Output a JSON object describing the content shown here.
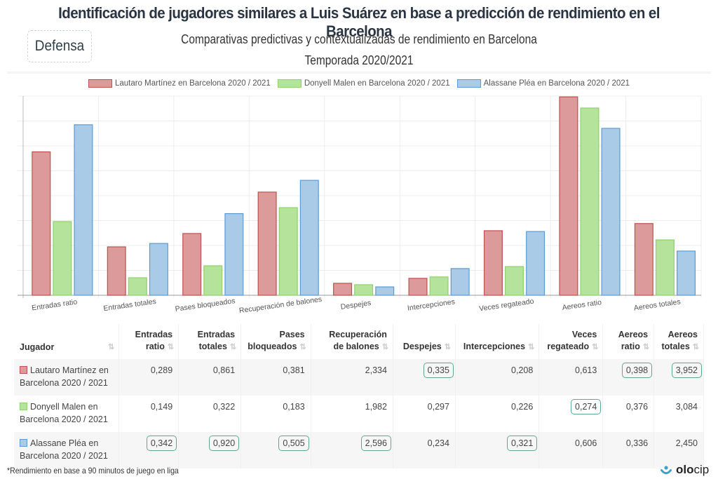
{
  "header": {
    "title": "Identificación de jugadores similares a Luis Suárez en base a predicción de rendimiento en el Barcelona",
    "badge": "Defensa",
    "subtitle": "Comparativas predictivas y contextualizadas de rendimiento en Barcelona",
    "season": "Temporada 2020/2021"
  },
  "colors": {
    "series_fill": [
      "#dc9a9a",
      "#b5e39b",
      "#a9cbe8"
    ],
    "series_stroke": [
      "#c0504d",
      "#8fd16a",
      "#5b9bd5"
    ],
    "highlight": "#5aaa8c"
  },
  "chart_data": {
    "type": "bar",
    "title": "",
    "xlabel": "",
    "ylabel": "",
    "grid": true,
    "legend_position": "top-center",
    "y_axis_labels": false,
    "scaling_note": "bar heights are relative (normalized per metric); fractions of plot height estimated from pixels",
    "categories": [
      "Entradas ratio",
      "Entradas totales",
      "Pases bloqueados",
      "Recuperación de balones",
      "Despejes",
      "Intercepciones",
      "Veces regateado",
      "Aereos ratio",
      "Aereos totales"
    ],
    "series": [
      {
        "name": "Lautaro Martínez en Barcelona 2020 / 2021",
        "values": [
          0.289,
          0.861,
          0.381,
          2.334,
          0.335,
          0.208,
          0.613,
          0.398,
          3.952
        ],
        "relative_height": [
          0.72,
          0.243,
          0.31,
          0.518,
          0.06,
          0.085,
          0.324,
          0.996,
          0.36
        ]
      },
      {
        "name": "Donyell Malen en Barcelona 2020 / 2021",
        "values": [
          0.149,
          0.322,
          0.183,
          1.982,
          0.297,
          0.226,
          0.274,
          0.376,
          3.084
        ],
        "relative_height": [
          0.37,
          0.088,
          0.148,
          0.44,
          0.053,
          0.092,
          0.144,
          0.94,
          0.278
        ]
      },
      {
        "name": "Alassane Pléa en Barcelona 2020 / 2021",
        "values": [
          0.342,
          0.92,
          0.505,
          2.596,
          0.234,
          0.321,
          0.606,
          0.336,
          2.45
        ],
        "relative_height": [
          0.856,
          0.26,
          0.41,
          0.577,
          0.042,
          0.134,
          0.32,
          0.838,
          0.222
        ]
      }
    ]
  },
  "table": {
    "columns": [
      {
        "line1": "",
        "line2": "Jugador"
      },
      {
        "line1": "Entradas",
        "line2": "ratio"
      },
      {
        "line1": "Entradas",
        "line2": "totales"
      },
      {
        "line1": "Pases",
        "line2": "bloqueados"
      },
      {
        "line1": "Recuperación",
        "line2": "de balones"
      },
      {
        "line1": "",
        "line2": "Despejes"
      },
      {
        "line1": "",
        "line2": "Intercepciones"
      },
      {
        "line1": "Veces",
        "line2": "regateado"
      },
      {
        "line1": "Aereos",
        "line2": "ratio"
      },
      {
        "line1": "Aereos",
        "line2": "totales"
      }
    ],
    "sort_icon": "⇅",
    "rows": [
      {
        "player_line1": "Lautaro Martínez en",
        "player_line2": "Barcelona 2020 / 2021",
        "cells": [
          "0,289",
          "0,861",
          "0,381",
          "2,334",
          "0,335",
          "0,208",
          "0,613",
          "0,398",
          "3,952"
        ],
        "highlighted": [
          false,
          false,
          false,
          false,
          true,
          false,
          false,
          true,
          true
        ]
      },
      {
        "player_line1": "Donyell Malen en",
        "player_line2": "Barcelona 2020 / 2021",
        "cells": [
          "0,149",
          "0,322",
          "0,183",
          "1,982",
          "0,297",
          "0,226",
          "0,274",
          "0,376",
          "3,084"
        ],
        "highlighted": [
          false,
          false,
          false,
          false,
          false,
          false,
          true,
          false,
          false
        ]
      },
      {
        "player_line1": "Alassane Pléa en",
        "player_line2": "Barcelona 2020 / 2021",
        "cells": [
          "0,342",
          "0,920",
          "0,505",
          "2,596",
          "0,234",
          "0,321",
          "0,606",
          "0,336",
          "2,450"
        ],
        "highlighted": [
          true,
          true,
          true,
          true,
          false,
          true,
          false,
          false,
          false
        ]
      }
    ]
  },
  "footer": {
    "note": "*Rendimiento en base a 90 minutos de juego en liga",
    "logo_bold": "olo",
    "logo_light": "cip"
  }
}
